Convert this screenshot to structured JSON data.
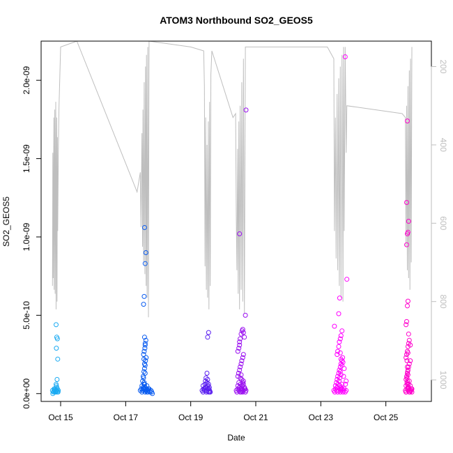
{
  "chart_data": {
    "type": "scatter",
    "title": "ATOM3 Northbound SO2_GEOS5",
    "xlabel": "Date",
    "ylabel": "SO2_GEOS5",
    "xlim": [
      14.4,
      26.4
    ],
    "ylim": [
      -5e-11,
      2.25e-09
    ],
    "x_ticks": [
      {
        "value": 15,
        "label": "Oct 15"
      },
      {
        "value": 17,
        "label": "Oct 17"
      },
      {
        "value": 19,
        "label": "Oct 19"
      },
      {
        "value": 21,
        "label": "Oct 21"
      },
      {
        "value": 23,
        "label": "Oct 23"
      },
      {
        "value": 25,
        "label": "Oct 25"
      }
    ],
    "y_ticks": [
      {
        "value": 0,
        "label": "0.0e+00"
      },
      {
        "value": 5e-10,
        "label": "5.0e-10"
      },
      {
        "value": 1e-09,
        "label": "1.0e-09"
      },
      {
        "value": 1.5e-09,
        "label": "1.5e-09"
      },
      {
        "value": 2e-09,
        "label": "2.0e-09"
      }
    ],
    "y2_lim": [
      1055,
      135
    ],
    "y2_ticks": [
      {
        "value": 200,
        "label": "200"
      },
      {
        "value": 400,
        "label": "400"
      },
      {
        "value": 600,
        "label": "600"
      },
      {
        "value": 800,
        "label": "800"
      },
      {
        "value": 1000,
        "label": "1000"
      }
    ],
    "grid": false,
    "point_colors": [
      "#1aaaf2",
      "#0a5cf0",
      "#5a1ef0",
      "#9a0ff0",
      "#ff00ff",
      "#ff00cc"
    ],
    "line_color": "#bebebe",
    "series": [
      {
        "x": [
          14.75,
          14.78,
          14.8,
          14.82,
          14.85,
          14.88,
          14.9,
          14.92,
          14.76,
          14.79,
          14.81,
          14.84,
          14.87,
          14.9,
          14.93,
          14.86,
          14.88,
          14.9,
          14.87,
          14.91,
          14.89,
          14.86,
          14.88,
          14.9,
          14.87,
          14.85
        ],
        "y": [
          2e-11,
          1e-11,
          3e-11,
          2e-11,
          1e-11,
          2e-11,
          3e-11,
          1e-11,
          0,
          1.5e-11,
          2.5e-11,
          1e-11,
          2e-11,
          1e-11,
          2e-11,
          4.4e-10,
          3.6e-10,
          3.5e-10,
          2.9e-10,
          2.2e-10,
          9e-11,
          6e-11,
          4e-11,
          3e-11,
          5e-11,
          1e-11
        ]
      },
      {
        "x": [
          17.45,
          17.48,
          17.5,
          17.52,
          17.55,
          17.58,
          17.6,
          17.62,
          17.65,
          17.68,
          17.7,
          17.72,
          17.75,
          17.78,
          17.8,
          17.82,
          17.5,
          17.53,
          17.56,
          17.59,
          17.62,
          17.65,
          17.52,
          17.54,
          17.56,
          17.58,
          17.6,
          17.61,
          17.63,
          17.55,
          17.57,
          17.59,
          17.6,
          17.62,
          17.58,
          17.55,
          17.57,
          17.6,
          17.62,
          17.58,
          17.6,
          17.56,
          17.58,
          17.6,
          17.55,
          17.57,
          17.58,
          17.6,
          17.62,
          17.64,
          17.66,
          17.68,
          17.7
        ],
        "y": [
          2e-11,
          3e-11,
          1e-11,
          2e-11,
          4e-11,
          3e-11,
          1e-11,
          2e-11,
          3e-11,
          1e-11,
          2e-11,
          3e-11,
          1e-11,
          2e-11,
          1e-11,
          0,
          5e-11,
          3e-11,
          6e-11,
          4e-11,
          2e-11,
          5e-11,
          8e-11,
          1.1e-10,
          1.4e-10,
          1.6e-10,
          1.8e-10,
          2.1e-10,
          2.3e-10,
          2.5e-10,
          2.7e-10,
          2.9e-10,
          3.1e-10,
          3.4e-10,
          3.6e-10,
          5.7e-10,
          6.2e-10,
          8.3e-10,
          9e-10,
          1.06e-09,
          3.2e-10,
          2.2e-10,
          1.9e-10,
          1.3e-10,
          1e-10,
          7e-11,
          6e-11,
          4e-11,
          3e-11,
          2e-11,
          1e-11,
          2e-11,
          3e-11
        ]
      },
      {
        "x": [
          19.35,
          19.38,
          19.4,
          19.42,
          19.45,
          19.48,
          19.5,
          19.52,
          19.55,
          19.58,
          19.6,
          19.38,
          19.41,
          19.44,
          19.47,
          19.5,
          19.53,
          19.56,
          19.45,
          19.47,
          19.5,
          19.52,
          19.55,
          19.57,
          19.48,
          19.52,
          19.55,
          19.58
        ],
        "y": [
          2e-11,
          1e-11,
          3e-11,
          2e-11,
          4e-11,
          1e-11,
          2e-11,
          3e-11,
          1e-11,
          2e-11,
          1e-11,
          5e-11,
          3e-11,
          6e-11,
          4e-11,
          7e-11,
          5e-11,
          3e-11,
          8e-11,
          1e-10,
          1.3e-10,
          9e-11,
          6e-11,
          4e-11,
          2e-11,
          3.6e-10,
          3.9e-10,
          1e-11
        ]
      },
      {
        "x": [
          20.4,
          20.42,
          20.45,
          20.48,
          20.5,
          20.52,
          20.55,
          20.58,
          20.6,
          20.62,
          20.65,
          20.68,
          20.7,
          20.45,
          20.48,
          20.5,
          20.53,
          20.56,
          20.59,
          20.62,
          20.45,
          20.47,
          20.5,
          20.52,
          20.55,
          20.57,
          20.6,
          20.62,
          20.45,
          20.48,
          20.5,
          20.52,
          20.55,
          20.58,
          20.6,
          20.62,
          20.65,
          20.5,
          20.52,
          20.55,
          20.57,
          20.6,
          20.62,
          20.65,
          20.67,
          20.5,
          20.7,
          20.68,
          20.55,
          20.58
        ],
        "y": [
          2e-11,
          1e-11,
          3e-11,
          2e-11,
          4e-11,
          1e-11,
          2e-11,
          3e-11,
          1e-11,
          2e-11,
          3e-11,
          1e-11,
          2e-11,
          5e-11,
          7e-11,
          4e-11,
          6e-11,
          3e-11,
          5e-11,
          8e-11,
          1.1e-10,
          1.3e-10,
          1.5e-10,
          1.7e-10,
          1.9e-10,
          2.1e-10,
          2.3e-10,
          2.5e-10,
          2.7e-10,
          2.9e-10,
          3.1e-10,
          3.5e-10,
          3.8e-10,
          4e-10,
          4.1e-10,
          3.9e-10,
          3.6e-10,
          3.3e-10,
          1e-10,
          1.2e-10,
          9e-11,
          7e-11,
          6e-11,
          4e-11,
          3e-11,
          1.02e-09,
          1.81e-09,
          5e-10,
          1e-11,
          2e-11
        ]
      },
      {
        "x": [
          23.4,
          23.43,
          23.45,
          23.48,
          23.5,
          23.52,
          23.55,
          23.58,
          23.6,
          23.62,
          23.65,
          23.68,
          23.7,
          23.72,
          23.75,
          23.78,
          23.45,
          23.48,
          23.5,
          23.53,
          23.56,
          23.59,
          23.62,
          23.65,
          23.5,
          23.52,
          23.55,
          23.57,
          23.6,
          23.62,
          23.65,
          23.67,
          23.5,
          23.52,
          23.55,
          23.57,
          23.6,
          23.62,
          23.65,
          23.55,
          23.58,
          23.6,
          23.62,
          23.65,
          23.6,
          23.62,
          23.58,
          23.75,
          23.8,
          23.68,
          23.72,
          23.42,
          23.7,
          23.78,
          23.76,
          23.62
        ],
        "y": [
          2e-11,
          1e-11,
          3e-11,
          2e-11,
          4e-11,
          1e-11,
          2e-11,
          3e-11,
          1e-11,
          2e-11,
          3e-11,
          1e-11,
          2e-11,
          3e-11,
          1e-11,
          2e-11,
          5e-11,
          7e-11,
          4e-11,
          6e-11,
          8e-11,
          5e-11,
          3e-11,
          6e-11,
          9e-11,
          1.1e-10,
          1.3e-10,
          1.5e-10,
          1.7e-10,
          1.9e-10,
          2.1e-10,
          2.3e-10,
          2.5e-10,
          2.7e-10,
          3e-10,
          3.3e-10,
          3.5e-10,
          3.7e-10,
          4e-10,
          5.1e-10,
          6.1e-10,
          2.6e-10,
          2.2e-10,
          1.8e-10,
          1.4e-10,
          1.2e-10,
          1e-10,
          2.15e-09,
          7.3e-10,
          2e-10,
          1.6e-10,
          4.3e-10,
          1.1e-10,
          8e-11,
          6e-11,
          4e-11
        ]
      },
      {
        "x": [
          25.6,
          25.62,
          25.65,
          25.68,
          25.7,
          25.72,
          25.75,
          25.78,
          25.8,
          25.62,
          25.65,
          25.68,
          25.7,
          25.72,
          25.75,
          25.78,
          25.62,
          25.64,
          25.66,
          25.68,
          25.7,
          25.72,
          25.75,
          25.62,
          25.64,
          25.66,
          25.68,
          25.7,
          25.72,
          25.75,
          25.62,
          25.64,
          25.66,
          25.68,
          25.7,
          25.64,
          25.66,
          25.68,
          25.7,
          25.64,
          25.66,
          25.68,
          25.65,
          25.66,
          25.67,
          25.68,
          25.65,
          25.67,
          25.66,
          25.68,
          25.7,
          25.72,
          25.74,
          25.78,
          25.8,
          25.62
        ],
        "y": [
          2e-11,
          1e-11,
          3e-11,
          2e-11,
          4e-11,
          1e-11,
          2e-11,
          3e-11,
          1e-11,
          5e-11,
          7e-11,
          4e-11,
          6e-11,
          8e-11,
          5e-11,
          3e-11,
          9e-11,
          1.1e-10,
          1.3e-10,
          1.5e-10,
          1.7e-10,
          1.9e-10,
          2.1e-10,
          2.3e-10,
          2.5e-10,
          2.7e-10,
          3e-10,
          3.2e-10,
          3.4e-10,
          3.1e-10,
          4.4e-10,
          4.6e-10,
          5.6e-10,
          5.9e-10,
          3.8e-10,
          9.5e-10,
          1.02e-09,
          1.03e-09,
          1.1e-09,
          1.22e-09,
          1.74e-09,
          2.6e-10,
          2.1e-10,
          1.7e-10,
          1.4e-10,
          1.2e-10,
          1e-10,
          8e-11,
          6e-11,
          4e-11,
          3e-11,
          2e-11,
          1e-11,
          2e-11,
          3e-11,
          1e-11
        ]
      }
    ],
    "pressure_line": [
      [
        14.75,
        760
      ],
      [
        14.76,
        420
      ],
      [
        14.77,
        740
      ],
      [
        14.79,
        330
      ],
      [
        14.8,
        770
      ],
      [
        14.82,
        310
      ],
      [
        14.83,
        780
      ],
      [
        14.85,
        290
      ],
      [
        14.86,
        820
      ],
      [
        14.88,
        330
      ],
      [
        14.89,
        800
      ],
      [
        14.9,
        380
      ],
      [
        14.91,
        620
      ],
      [
        14.93,
        420
      ],
      [
        14.95,
        300
      ],
      [
        15.0,
        150
      ],
      [
        15.5,
        130
      ],
      [
        17.35,
        520
      ],
      [
        17.45,
        470
      ],
      [
        17.47,
        610
      ],
      [
        17.5,
        370
      ],
      [
        17.52,
        660
      ],
      [
        17.53,
        310
      ],
      [
        17.55,
        700
      ],
      [
        17.57,
        240
      ],
      [
        17.59,
        730
      ],
      [
        17.61,
        200
      ],
      [
        17.63,
        760
      ],
      [
        17.64,
        170
      ],
      [
        17.66,
        790
      ],
      [
        17.68,
        150
      ],
      [
        17.7,
        840
      ],
      [
        17.72,
        135
      ],
      [
        19.0,
        150
      ],
      [
        19.4,
        160
      ],
      [
        19.42,
        250
      ],
      [
        19.44,
        710
      ],
      [
        19.46,
        330
      ],
      [
        19.48,
        770
      ],
      [
        19.5,
        400
      ],
      [
        19.52,
        790
      ],
      [
        19.54,
        340
      ],
      [
        19.56,
        820
      ],
      [
        19.58,
        290
      ],
      [
        19.6,
        760
      ],
      [
        19.62,
        220
      ],
      [
        19.65,
        160
      ],
      [
        20.3,
        330
      ],
      [
        20.38,
        320
      ],
      [
        20.4,
        580
      ],
      [
        20.42,
        720
      ],
      [
        20.44,
        410
      ],
      [
        20.46,
        780
      ],
      [
        20.48,
        340
      ],
      [
        20.5,
        820
      ],
      [
        20.52,
        300
      ],
      [
        20.55,
        770
      ],
      [
        20.57,
        240
      ],
      [
        20.6,
        800
      ],
      [
        20.62,
        180
      ],
      [
        20.65,
        830
      ],
      [
        20.68,
        150
      ],
      [
        23.2,
        150
      ],
      [
        23.4,
        180
      ],
      [
        23.42,
        620
      ],
      [
        23.45,
        330
      ],
      [
        23.47,
        690
      ],
      [
        23.5,
        270
      ],
      [
        23.52,
        720
      ],
      [
        23.55,
        230
      ],
      [
        23.57,
        760
      ],
      [
        23.6,
        200
      ],
      [
        23.62,
        790
      ],
      [
        23.65,
        170
      ],
      [
        23.68,
        800
      ],
      [
        23.7,
        150
      ],
      [
        23.72,
        620
      ],
      [
        23.75,
        150
      ],
      [
        23.78,
        420
      ],
      [
        23.8,
        300
      ],
      [
        25.5,
        320
      ],
      [
        25.6,
        330
      ],
      [
        25.62,
        660
      ],
      [
        25.64,
        300
      ],
      [
        25.66,
        720
      ],
      [
        25.68,
        250
      ],
      [
        25.7,
        740
      ],
      [
        25.72,
        210
      ],
      [
        25.74,
        770
      ],
      [
        25.76,
        180
      ],
      [
        25.78,
        700
      ],
      [
        25.8,
        150
      ]
    ]
  }
}
